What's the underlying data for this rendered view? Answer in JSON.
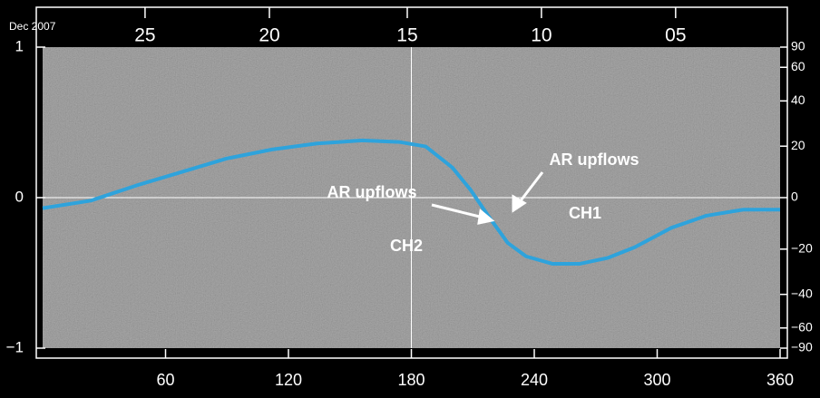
{
  "chart_data": {
    "type": "line",
    "date_label": "Dec 2007",
    "x": [
      0,
      23.5,
      45.6,
      67.7,
      89.9,
      112,
      134,
      156,
      174,
      187,
      200,
      209,
      218,
      227,
      236,
      249,
      262,
      276,
      289,
      307,
      324,
      342,
      360
    ],
    "series": [
      {
        "color": "#2ea3dc",
        "values": [
          -0.07,
          -0.02,
          0.08,
          0.17,
          0.26,
          0.32,
          0.36,
          0.38,
          0.37,
          0.34,
          0.2,
          0.05,
          -0.13,
          -0.3,
          -0.39,
          -0.44,
          -0.44,
          -0.4,
          -0.33,
          -0.2,
          -0.12,
          -0.08,
          -0.08
        ]
      }
    ],
    "xlim": [
      0,
      360
    ],
    "xticks": [
      60,
      120,
      180,
      240,
      300,
      360
    ],
    "top_ticks": [
      {
        "value": 50,
        "label": "25"
      },
      {
        "value": 110.7,
        "label": "20"
      },
      {
        "value": 178,
        "label": "15"
      },
      {
        "value": 243.5,
        "label": "10"
      },
      {
        "value": 309,
        "label": "05"
      }
    ],
    "ylim": [
      -1,
      1
    ],
    "yticks": [
      1,
      0,
      {
        "value": -1,
        "label": "−1"
      }
    ],
    "y2scale": "sine",
    "y2lim": [
      -90,
      90
    ],
    "y2ticks": [
      90,
      60,
      40,
      20,
      0,
      {
        "value": -20,
        "label": "−20"
      },
      {
        "value": -40,
        "label": "−40"
      },
      {
        "value": -60,
        "label": "−60"
      },
      {
        "value": -90,
        "label": "−90"
      }
    ],
    "annotations": [
      "AR upflows",
      "AR upflows",
      "CH1",
      "CH2"
    ]
  }
}
